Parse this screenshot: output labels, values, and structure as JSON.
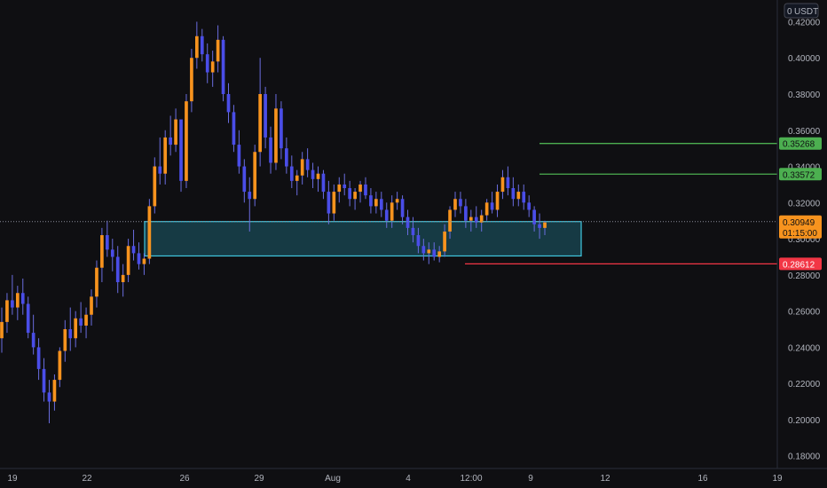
{
  "currency_label": "USDT",
  "currency_prefix": "0",
  "colors": {
    "background": "#0f0f12",
    "bull": "#f7931e",
    "bear": "#4a4de8",
    "wick": "#6a6de0",
    "zone_fill": "#1f6f83",
    "zone_border": "#40c8e0",
    "green_line": "#4caf50",
    "red_line": "#f23645",
    "price_tag": "#f7931e",
    "axis_text": "#b2b5be",
    "dotted": "#8a8e99"
  },
  "chart_data": {
    "type": "candlestick",
    "symbol_quote": "USDT",
    "ylim": [
      0.173,
      0.432
    ],
    "y_ticks": [
      "0.42000",
      "0.40000",
      "0.38000",
      "0.36000",
      "0.34000",
      "0.32000",
      "0.30000",
      "0.28000",
      "0.26000",
      "0.24000",
      "0.22000",
      "0.20000",
      "0.18000"
    ],
    "x_ticks": [
      "19",
      "22",
      "26",
      "29",
      "Aug",
      "4",
      "12:00",
      "9",
      "12",
      "16",
      "19"
    ],
    "current_price": "0.30949",
    "countdown": "01:15:00",
    "levels": [
      {
        "price": 0.35268,
        "label": "0.35268",
        "color": "green"
      },
      {
        "price": 0.33572,
        "label": "0.33572",
        "color": "green"
      },
      {
        "price": 0.28612,
        "label": "0.28612",
        "color": "red"
      }
    ],
    "demand_zone": {
      "top": 0.3095,
      "bottom": 0.2905
    },
    "candles_ohlc": [
      [
        0.245,
        0.262,
        0.237,
        0.254
      ],
      [
        0.254,
        0.27,
        0.248,
        0.266
      ],
      [
        0.266,
        0.28,
        0.258,
        0.262
      ],
      [
        0.262,
        0.274,
        0.255,
        0.27
      ],
      [
        0.27,
        0.278,
        0.258,
        0.264
      ],
      [
        0.264,
        0.268,
        0.245,
        0.248
      ],
      [
        0.248,
        0.258,
        0.236,
        0.24
      ],
      [
        0.24,
        0.245,
        0.222,
        0.228
      ],
      [
        0.228,
        0.234,
        0.21,
        0.215
      ],
      [
        0.215,
        0.222,
        0.198,
        0.21
      ],
      [
        0.21,
        0.225,
        0.205,
        0.222
      ],
      [
        0.222,
        0.24,
        0.218,
        0.238
      ],
      [
        0.238,
        0.255,
        0.232,
        0.25
      ],
      [
        0.25,
        0.262,
        0.238,
        0.245
      ],
      [
        0.245,
        0.26,
        0.24,
        0.256
      ],
      [
        0.256,
        0.265,
        0.248,
        0.252
      ],
      [
        0.252,
        0.262,
        0.245,
        0.258
      ],
      [
        0.258,
        0.272,
        0.252,
        0.268
      ],
      [
        0.268,
        0.288,
        0.262,
        0.284
      ],
      [
        0.284,
        0.306,
        0.276,
        0.302
      ],
      [
        0.302,
        0.31,
        0.29,
        0.294
      ],
      [
        0.294,
        0.3,
        0.282,
        0.29
      ],
      [
        0.29,
        0.296,
        0.27,
        0.276
      ],
      [
        0.276,
        0.286,
        0.268,
        0.28
      ],
      [
        0.28,
        0.3,
        0.276,
        0.296
      ],
      [
        0.296,
        0.305,
        0.288,
        0.292
      ],
      [
        0.292,
        0.298,
        0.283,
        0.286
      ],
      [
        0.286,
        0.292,
        0.28,
        0.289
      ],
      [
        0.289,
        0.322,
        0.286,
        0.318
      ],
      [
        0.318,
        0.345,
        0.314,
        0.34
      ],
      [
        0.34,
        0.356,
        0.33,
        0.336
      ],
      [
        0.336,
        0.36,
        0.33,
        0.356
      ],
      [
        0.356,
        0.368,
        0.346,
        0.352
      ],
      [
        0.352,
        0.372,
        0.348,
        0.366
      ],
      [
        0.366,
        0.358,
        0.326,
        0.332
      ],
      [
        0.332,
        0.38,
        0.328,
        0.376
      ],
      [
        0.376,
        0.405,
        0.37,
        0.4
      ],
      [
        0.4,
        0.42,
        0.394,
        0.412
      ],
      [
        0.412,
        0.416,
        0.398,
        0.402
      ],
      [
        0.402,
        0.408,
        0.386,
        0.392
      ],
      [
        0.392,
        0.404,
        0.384,
        0.398
      ],
      [
        0.398,
        0.418,
        0.392,
        0.41
      ],
      [
        0.41,
        0.412,
        0.376,
        0.38
      ],
      [
        0.38,
        0.386,
        0.364,
        0.37
      ],
      [
        0.37,
        0.374,
        0.348,
        0.352
      ],
      [
        0.352,
        0.36,
        0.336,
        0.34
      ],
      [
        0.34,
        0.344,
        0.32,
        0.326
      ],
      [
        0.326,
        0.334,
        0.304,
        0.322
      ],
      [
        0.322,
        0.352,
        0.318,
        0.348
      ],
      [
        0.348,
        0.4,
        0.34,
        0.38
      ],
      [
        0.38,
        0.384,
        0.35,
        0.356
      ],
      [
        0.356,
        0.362,
        0.336,
        0.342
      ],
      [
        0.342,
        0.38,
        0.338,
        0.372
      ],
      [
        0.372,
        0.376,
        0.344,
        0.35
      ],
      [
        0.35,
        0.356,
        0.336,
        0.34
      ],
      [
        0.34,
        0.346,
        0.328,
        0.332
      ],
      [
        0.332,
        0.338,
        0.324,
        0.335
      ],
      [
        0.335,
        0.348,
        0.33,
        0.344
      ],
      [
        0.344,
        0.35,
        0.334,
        0.338
      ],
      [
        0.338,
        0.342,
        0.328,
        0.333
      ],
      [
        0.333,
        0.34,
        0.326,
        0.336
      ],
      [
        0.336,
        0.338,
        0.322,
        0.326
      ],
      [
        0.326,
        0.332,
        0.308,
        0.314
      ],
      [
        0.314,
        0.33,
        0.31,
        0.326
      ],
      [
        0.326,
        0.334,
        0.32,
        0.33
      ],
      [
        0.33,
        0.336,
        0.324,
        0.328
      ],
      [
        0.328,
        0.332,
        0.318,
        0.322
      ],
      [
        0.322,
        0.328,
        0.316,
        0.326
      ],
      [
        0.326,
        0.332,
        0.32,
        0.33
      ],
      [
        0.33,
        0.334,
        0.322,
        0.324
      ],
      [
        0.324,
        0.328,
        0.314,
        0.318
      ],
      [
        0.318,
        0.326,
        0.314,
        0.322
      ],
      [
        0.322,
        0.326,
        0.312,
        0.316
      ],
      [
        0.316,
        0.32,
        0.306,
        0.31
      ],
      [
        0.31,
        0.324,
        0.306,
        0.32
      ],
      [
        0.32,
        0.326,
        0.316,
        0.322
      ],
      [
        0.322,
        0.324,
        0.308,
        0.312
      ],
      [
        0.312,
        0.316,
        0.302,
        0.306
      ],
      [
        0.306,
        0.312,
        0.298,
        0.302
      ],
      [
        0.302,
        0.306,
        0.292,
        0.296
      ],
      [
        0.296,
        0.3,
        0.288,
        0.292
      ],
      [
        0.292,
        0.298,
        0.286,
        0.294
      ],
      [
        0.294,
        0.298,
        0.288,
        0.29
      ],
      [
        0.29,
        0.296,
        0.287,
        0.293
      ],
      [
        0.293,
        0.308,
        0.29,
        0.304
      ],
      [
        0.304,
        0.318,
        0.3,
        0.316
      ],
      [
        0.316,
        0.326,
        0.312,
        0.322
      ],
      [
        0.322,
        0.326,
        0.314,
        0.318
      ],
      [
        0.318,
        0.322,
        0.306,
        0.31
      ],
      [
        0.31,
        0.316,
        0.304,
        0.312
      ],
      [
        0.312,
        0.318,
        0.306,
        0.309
      ],
      [
        0.309,
        0.316,
        0.304,
        0.313
      ],
      [
        0.313,
        0.322,
        0.31,
        0.32
      ],
      [
        0.32,
        0.326,
        0.314,
        0.316
      ],
      [
        0.316,
        0.33,
        0.312,
        0.326
      ],
      [
        0.326,
        0.338,
        0.322,
        0.334
      ],
      [
        0.334,
        0.34,
        0.324,
        0.328
      ],
      [
        0.328,
        0.334,
        0.318,
        0.322
      ],
      [
        0.322,
        0.33,
        0.318,
        0.326
      ],
      [
        0.326,
        0.33,
        0.316,
        0.32
      ],
      [
        0.32,
        0.324,
        0.312,
        0.316
      ],
      [
        0.316,
        0.318,
        0.304,
        0.308
      ],
      [
        0.308,
        0.314,
        0.3,
        0.306
      ],
      [
        0.306,
        0.31,
        0.302,
        0.309
      ]
    ]
  }
}
